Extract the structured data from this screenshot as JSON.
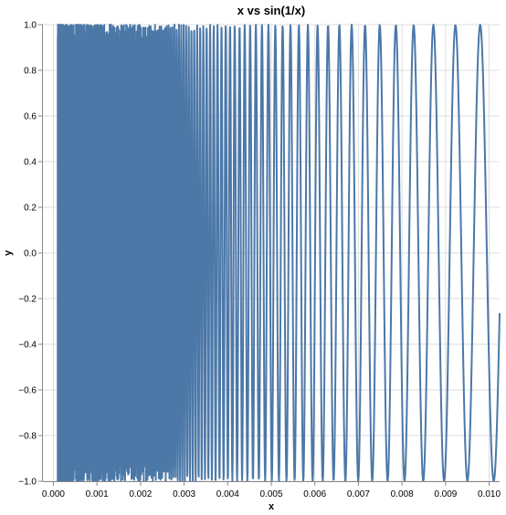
{
  "chart_data": {
    "type": "line",
    "title": "x vs sin(1/x)",
    "xlabel": "x",
    "ylabel": "y",
    "function": "sin(1/x)",
    "xlim": [
      -0.00024,
      0.01024
    ],
    "ylim": [
      -1.0,
      1.0
    ],
    "x_ticks": [
      "0.000",
      "0.001",
      "0.002",
      "0.003",
      "0.004",
      "0.005",
      "0.006",
      "0.007",
      "0.008",
      "0.009",
      "0.010"
    ],
    "x_tick_values": [
      0,
      0.001,
      0.002,
      0.003,
      0.004,
      0.005,
      0.006,
      0.007,
      0.008,
      0.009,
      0.01
    ],
    "y_ticks": [
      "−1.0",
      "−0.8",
      "−0.6",
      "−0.4",
      "−0.2",
      "0.0",
      "0.2",
      "0.4",
      "0.6",
      "0.8",
      "1.0"
    ],
    "y_tick_values": [
      -1.0,
      -0.8,
      -0.6,
      -0.4,
      -0.2,
      0.0,
      0.2,
      0.4,
      0.6,
      0.8,
      1.0
    ],
    "grid": true,
    "series": [
      {
        "color": "#4c78a8",
        "x_start": 0.0001,
        "x_end": 0.01024,
        "samples": 3000
      }
    ]
  }
}
